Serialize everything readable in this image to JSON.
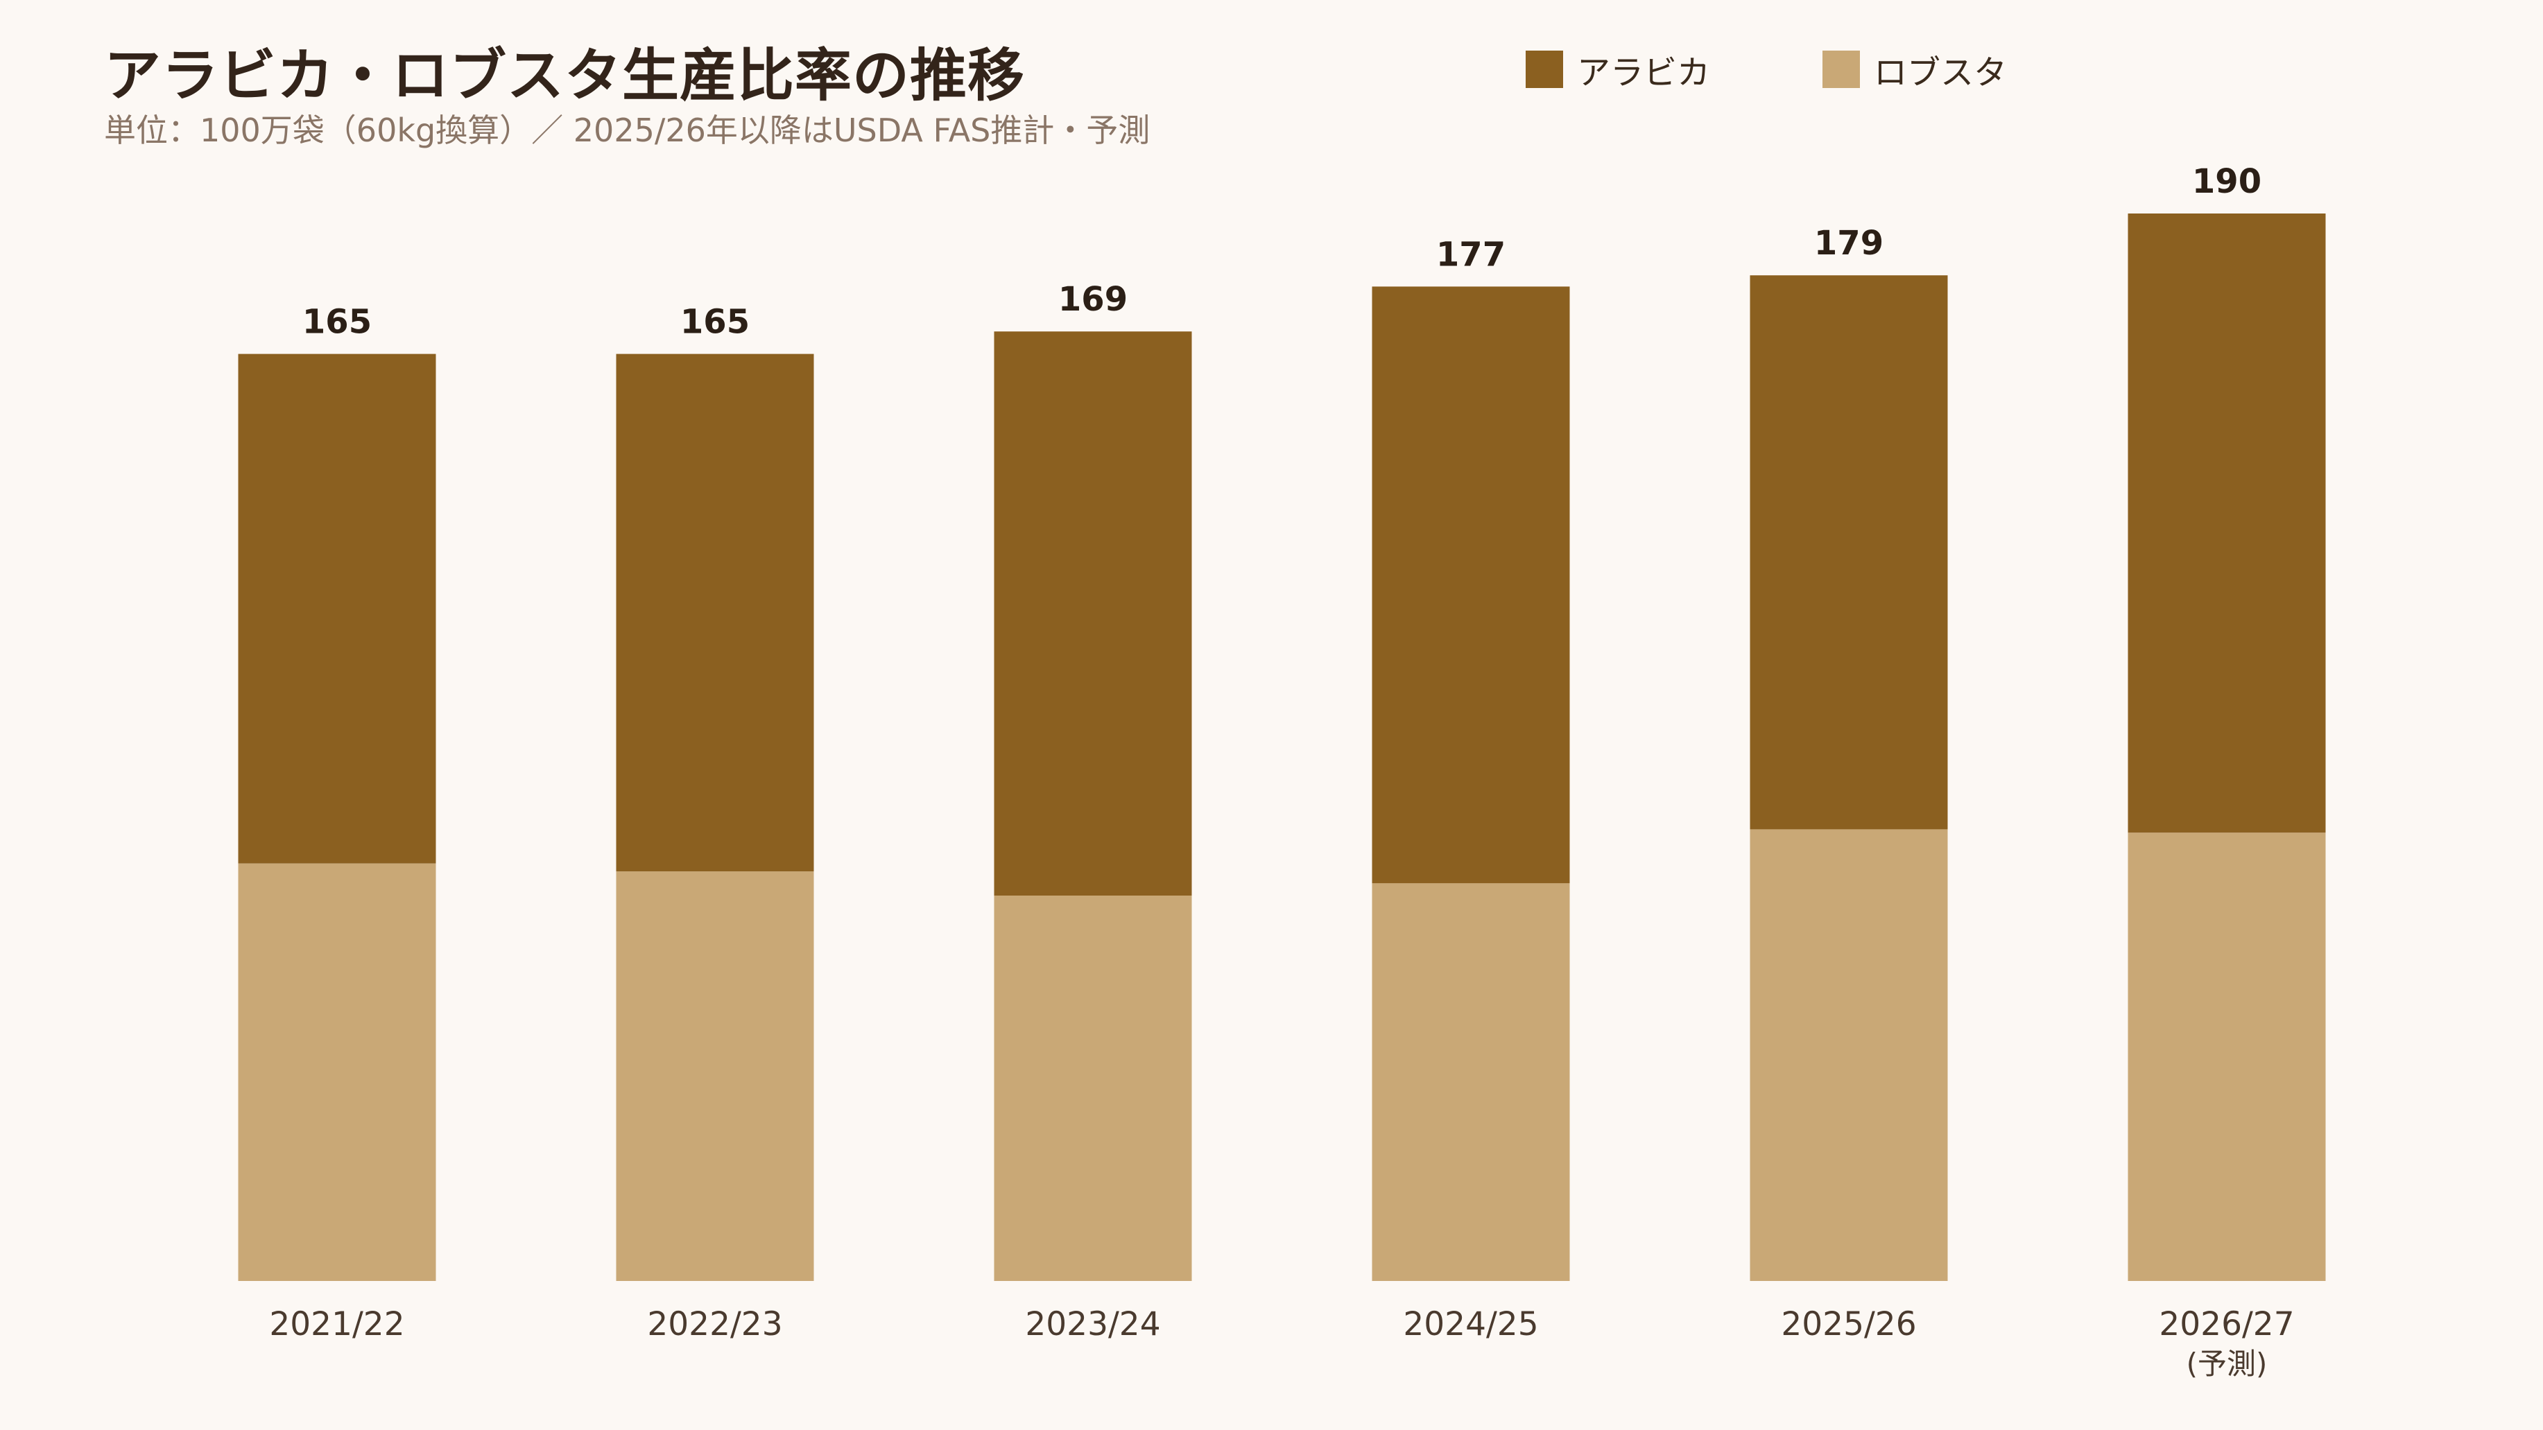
{
  "header": {
    "title": "アラビカ・ロブスタ生産比率の推移",
    "subtitle": "単位：100万袋（60kg換算）／ 2025/26年以降はUSDA FAS推計・予測"
  },
  "legend": [
    {
      "label": "アラビカ",
      "color": "#8b6020"
    },
    {
      "label": "ロブスタ",
      "color": "#c9a876"
    }
  ],
  "chart_data": {
    "type": "bar",
    "stacked": true,
    "categories": [
      "2021/22",
      "2022/23",
      "2023/24",
      "2024/25",
      "2025/26",
      "2026/27"
    ],
    "category_notes": [
      "",
      "",
      "",
      "",
      "",
      "(予測)"
    ],
    "series": [
      {
        "name": "ロブスタ",
        "color": "#c9a876",
        "values": [
          74.3,
          72.9,
          68.6,
          70.8,
          80.4,
          79.8
        ]
      },
      {
        "name": "アラビカ",
        "color": "#8b6020",
        "values": [
          90.7,
          92.1,
          100.4,
          106.2,
          98.6,
          110.2
        ]
      }
    ],
    "totals": [
      "165",
      "165",
      "169",
      "177",
      "179",
      "190"
    ],
    "ylim": [
      0,
      190
    ],
    "grid": false,
    "legend_position": "top-right"
  }
}
